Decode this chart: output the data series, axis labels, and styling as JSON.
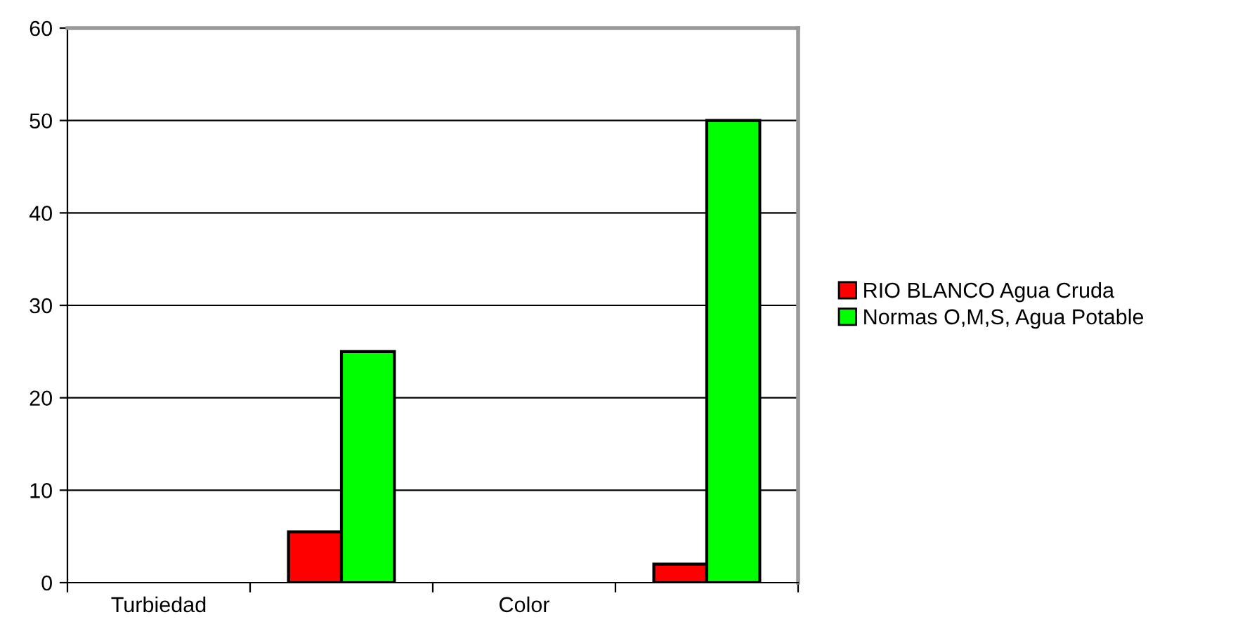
{
  "chart_data": {
    "type": "bar",
    "categories": [
      "Turbiedad",
      null,
      "Color",
      null
    ],
    "series": [
      {
        "name": "RIO BLANCO Agua Cruda",
        "color": "#ff0000",
        "values": [
          null,
          5.5,
          null,
          2
        ]
      },
      {
        "name": "Normas O,M,S, Agua Potable",
        "color": "#00ff00",
        "values": [
          null,
          25,
          null,
          50
        ]
      }
    ],
    "ylim": [
      0,
      60
    ],
    "yticks": [
      0,
      10,
      20,
      30,
      40,
      50,
      60
    ],
    "grid": "y",
    "legend": "right"
  }
}
